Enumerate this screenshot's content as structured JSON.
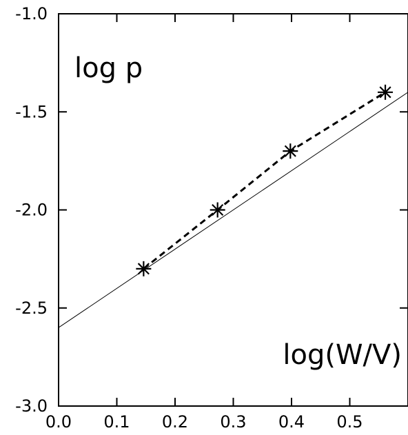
{
  "chart_data": {
    "type": "line",
    "title": "",
    "xlabel": "log(W/V)",
    "ylabel": "log p",
    "xlim": [
      0.0,
      0.6
    ],
    "ylim": [
      -3.0,
      -1.0
    ],
    "x_ticks": [
      0.0,
      0.1,
      0.2,
      0.3,
      0.4,
      0.5
    ],
    "x_tick_labels": [
      "0.0",
      "0.1",
      "0.2",
      "0.3",
      "0.4",
      "0.5"
    ],
    "y_ticks": [
      -1.0,
      -1.5,
      -2.0,
      -2.5,
      -3.0
    ],
    "y_tick_labels": [
      "-1.0",
      "-1.5",
      "-2.0",
      "-2.5",
      "-3.0"
    ],
    "grid": false,
    "legend": "none",
    "series": [
      {
        "style": "dashed line with asterisk markers",
        "color": "#000000",
        "x": [
          0.146,
          0.273,
          0.398,
          0.561
        ],
        "y": [
          -2.3,
          -2.0,
          -1.7,
          -1.4
        ]
      },
      {
        "style": "thin solid line",
        "color": "#000000",
        "x": [
          0.0,
          0.6
        ],
        "y": [
          -2.6,
          -1.4
        ]
      }
    ]
  }
}
